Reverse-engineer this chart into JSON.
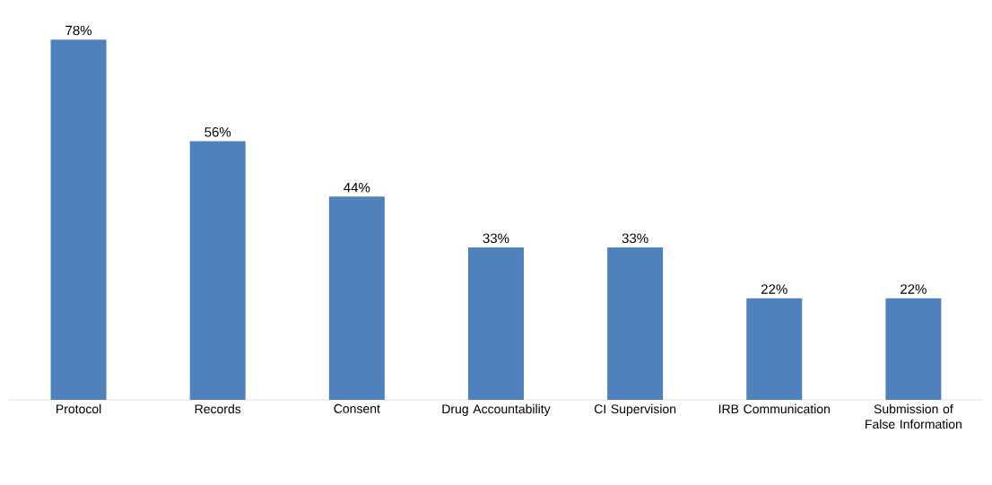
{
  "chart_data": {
    "type": "bar",
    "categories": [
      "Protocol",
      "Records",
      "Consent",
      "Drug Accountability",
      "CI Supervision",
      "IRB Communication",
      "Submission of False Information"
    ],
    "values": [
      78,
      56,
      44,
      33,
      33,
      22,
      22
    ],
    "value_labels": [
      "78%",
      "56%",
      "44%",
      "33%",
      "33%",
      "22%",
      "22%"
    ],
    "color": "#4f81bd"
  }
}
